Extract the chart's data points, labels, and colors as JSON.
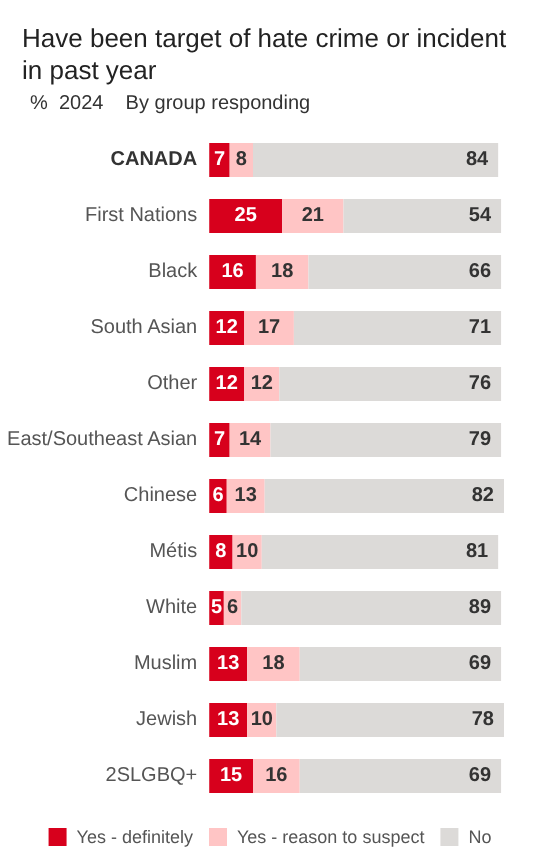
{
  "chart_data": {
    "type": "bar",
    "orientation": "horizontal",
    "stacked": true,
    "data_labels": true,
    "legend": "bottom",
    "title": "Have been target of hate crime or incident in past year",
    "subtitle": "%  2024    By group responding",
    "categories": [
      "CANADA",
      "First Nations",
      "Black",
      "South Asian",
      "Other",
      "East/Southeast Asian",
      "Chinese",
      "Métis",
      "White",
      "Muslim",
      "Jewish",
      "2SLGBQ+"
    ],
    "series": [
      {
        "name": "Yes - definitely",
        "color": "#d7001c",
        "values": [
          7,
          25,
          16,
          12,
          12,
          7,
          6,
          8,
          5,
          13,
          13,
          15
        ]
      },
      {
        "name": "Yes - reason to suspect",
        "color": "#ffc5c5",
        "values": [
          8,
          21,
          18,
          17,
          12,
          14,
          13,
          10,
          6,
          18,
          10,
          16
        ]
      },
      {
        "name": "No",
        "color": "#dcdad8",
        "values": [
          84,
          54,
          66,
          71,
          76,
          79,
          82,
          81,
          89,
          69,
          78,
          69
        ]
      }
    ]
  }
}
